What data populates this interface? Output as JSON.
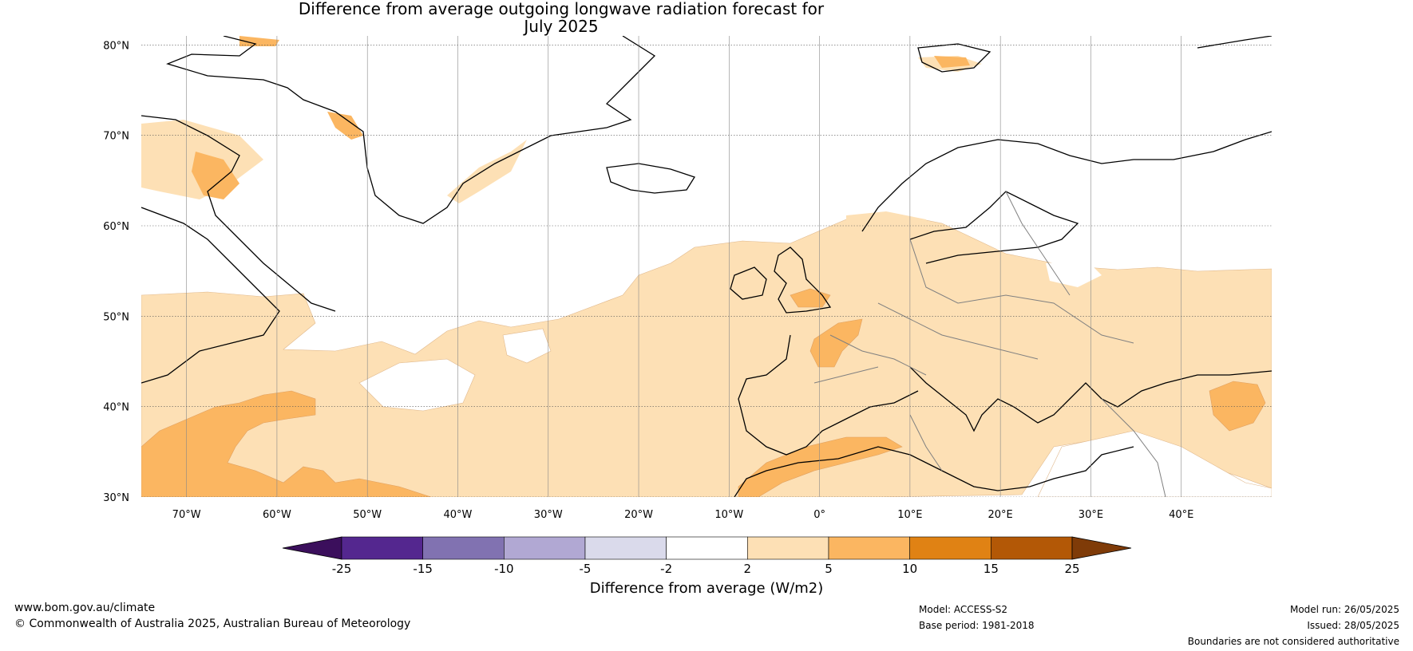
{
  "title_line1": "Difference from average outgoing longwave radiation forecast for",
  "title_line2": "July 2025",
  "map": {
    "lat_labels": [
      "80°N",
      "70°N",
      "60°N",
      "50°N",
      "40°N",
      "30°N"
    ],
    "lon_labels": [
      "70°W",
      "60°W",
      "50°W",
      "40°W",
      "30°W",
      "20°W",
      "10°W",
      "0°",
      "10°E",
      "20°E",
      "30°E",
      "40°E"
    ],
    "lat_values": [
      80,
      70,
      60,
      50,
      40,
      30
    ],
    "lon_values": [
      -70,
      -60,
      -50,
      -40,
      -30,
      -20,
      -10,
      0,
      10,
      20,
      30,
      40
    ],
    "extent": {
      "lon_min": -75,
      "lon_max": 50,
      "lat_min": 30,
      "lat_max": 81
    },
    "colors": {
      "band_2_5": "#fde0b5",
      "band_5_10": "#fbb661",
      "land_outline": "#000000",
      "border": "#808080"
    }
  },
  "legend": {
    "title": "Difference from average (W/m2)",
    "labels": [
      "-25",
      "-15",
      "-10",
      "-5",
      "-2",
      "2",
      "5",
      "10",
      "15",
      "25"
    ],
    "colors": [
      "#3b0f5c",
      "#54278f",
      "#8172b1",
      "#b1a8d3",
      "#dadaeb",
      "#ffffff",
      "#fde0b5",
      "#fbb661",
      "#e08214",
      "#b35806",
      "#7f3b08"
    ]
  },
  "footer": {
    "website": "www.bom.gov.au/climate",
    "copyright": "© Commonwealth of Australia 2025, Australian Bureau of Meteorology",
    "model": "Model: ACCESS-S2",
    "base_period": "Base period: 1981-2018",
    "model_run": "Model run: 26/05/2025",
    "issued": "Issued: 28/05/2025",
    "boundaries": "Boundaries are not considered authoritative"
  }
}
